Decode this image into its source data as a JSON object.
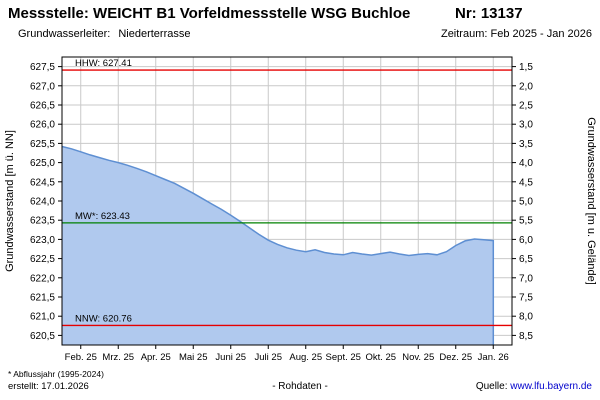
{
  "header": {
    "title": "Messstelle: WEICHT B1 Vorfeldmessstelle WSG Buchloe",
    "station_number": "Nr: 13137",
    "aquifer_label": "Grundwasserleiter:",
    "aquifer_value": "Niederterrasse",
    "period": "Zeitraum: Feb 2025 - Jan 2026"
  },
  "chart_data": {
    "type": "area",
    "title": "",
    "ylabel_left": "Grundwasserstand [m ü. NN]",
    "ylabel_right": "Grundwasserstand [m u. Gelände]",
    "ylim_left": [
      620.25,
      627.75
    ],
    "ground_elevation": 629.0,
    "yticks_left": [
      620.5,
      621.0,
      621.5,
      622.0,
      622.5,
      623.0,
      623.5,
      624.0,
      624.5,
      625.0,
      625.5,
      626.0,
      626.5,
      627.0,
      627.5
    ],
    "xlim_months": [
      0,
      12
    ],
    "x_tick_labels": [
      "Feb. 25",
      "Mrz. 25",
      "Apr. 25",
      "Mai 25",
      "Juni 25",
      "Juli 25",
      "Aug. 25",
      "Sept. 25",
      "Okt. 25",
      "Nov. 25",
      "Dez. 25",
      "Jan. 26"
    ],
    "grid": true,
    "legend": "none",
    "series": {
      "name": "Grundwasserstand Rohdaten",
      "x": [
        0,
        0.25,
        0.5,
        0.75,
        1,
        1.25,
        1.5,
        1.75,
        2,
        2.25,
        2.5,
        2.75,
        3,
        3.25,
        3.5,
        3.75,
        4,
        4.25,
        4.5,
        4.75,
        5,
        5.25,
        5.5,
        5.75,
        6,
        6.25,
        6.5,
        6.75,
        7,
        7.25,
        7.5,
        7.75,
        8,
        8.25,
        8.5,
        8.75,
        9,
        9.25,
        9.5,
        9.75,
        10,
        10.25,
        10.5,
        10.75,
        11,
        11.25,
        11.5
      ],
      "y": [
        625.42,
        625.36,
        625.28,
        625.2,
        625.13,
        625.06,
        625.0,
        624.93,
        624.85,
        624.76,
        624.66,
        624.56,
        624.46,
        624.33,
        624.2,
        624.06,
        623.92,
        623.78,
        623.63,
        623.47,
        623.3,
        623.13,
        622.98,
        622.87,
        622.78,
        622.72,
        622.68,
        622.73,
        622.66,
        622.62,
        622.6,
        622.66,
        622.62,
        622.59,
        622.63,
        622.67,
        622.62,
        622.58,
        622.61,
        622.63,
        622.6,
        622.68,
        622.84,
        622.96,
        623.01,
        622.99,
        622.97
      ]
    },
    "reference_lines": [
      {
        "name": "HHW",
        "label": "HHW: 627.41",
        "value": 627.41,
        "color": "#e60000"
      },
      {
        "name": "MW",
        "label": "MW*: 623.43",
        "value": 623.43,
        "color": "#008000"
      },
      {
        "name": "NNW",
        "label": "NNW: 620.76",
        "value": 620.76,
        "color": "#e60000"
      }
    ],
    "colors": {
      "area_fill": "#b0c9ee",
      "area_line": "#5e8fd2",
      "grid": "#c9c9c9",
      "axis": "#000000"
    }
  },
  "footer": {
    "note": "* Abflussjahr (1995-2024)",
    "created": "erstellt: 17.01.2026",
    "center": "- Rohdaten -",
    "source_label": "Quelle:",
    "source_link": "www.lfu.bayern.de"
  }
}
